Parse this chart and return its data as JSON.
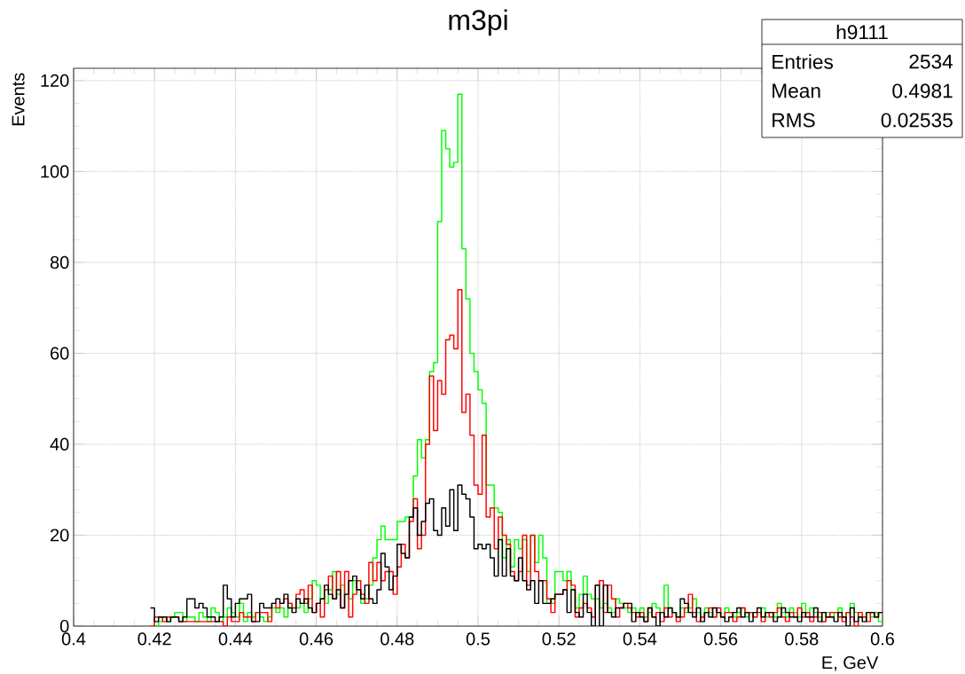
{
  "chart_data": {
    "type": "histogram",
    "title": "m3pi",
    "xlabel": "E, GeV",
    "ylabel": "Events",
    "annotations": [
      "h9111",
      "Entries",
      "2534",
      "Mean",
      "0.4981",
      "RMS",
      "0.02535"
    ],
    "xlim": [
      0.4,
      0.6
    ],
    "ylim": [
      0,
      122.7
    ],
    "xticks": [
      0.4,
      0.42,
      0.44,
      0.46,
      0.48,
      0.5,
      0.52,
      0.54,
      0.56,
      0.58,
      0.6
    ],
    "yticks": [
      0,
      20,
      40,
      60,
      80,
      100,
      120
    ],
    "grid": true,
    "bins": [
      0.419,
      0.42,
      0.421,
      0.422,
      0.423,
      0.424,
      0.425,
      0.426,
      0.427,
      0.428,
      0.429,
      0.43,
      0.431,
      0.432,
      0.433,
      0.434,
      0.435,
      0.436,
      0.437,
      0.438,
      0.439,
      0.44,
      0.441,
      0.442,
      0.443,
      0.444,
      0.445,
      0.446,
      0.447,
      0.448,
      0.449,
      0.45,
      0.451,
      0.452,
      0.453,
      0.454,
      0.455,
      0.456,
      0.457,
      0.458,
      0.459,
      0.46,
      0.461,
      0.462,
      0.463,
      0.464,
      0.465,
      0.466,
      0.467,
      0.468,
      0.469,
      0.47,
      0.471,
      0.472,
      0.473,
      0.474,
      0.475,
      0.476,
      0.477,
      0.478,
      0.479,
      0.48,
      0.481,
      0.482,
      0.483,
      0.484,
      0.485,
      0.486,
      0.487,
      0.488,
      0.489,
      0.49,
      0.491,
      0.492,
      0.493,
      0.494,
      0.495,
      0.496,
      0.497,
      0.498,
      0.499,
      0.5,
      0.501,
      0.502,
      0.503,
      0.504,
      0.505,
      0.506,
      0.507,
      0.508,
      0.509,
      0.51,
      0.511,
      0.512,
      0.513,
      0.514,
      0.515,
      0.516,
      0.517,
      0.518,
      0.519,
      0.52,
      0.521,
      0.522,
      0.523,
      0.524,
      0.525,
      0.526,
      0.527,
      0.528,
      0.529,
      0.53,
      0.531,
      0.532,
      0.533,
      0.534,
      0.535,
      0.536,
      0.537,
      0.538,
      0.539,
      0.54,
      0.541,
      0.542,
      0.543,
      0.544,
      0.545,
      0.546,
      0.547,
      0.548,
      0.549,
      0.55,
      0.551,
      0.552,
      0.553,
      0.554,
      0.555,
      0.556,
      0.557,
      0.558,
      0.559,
      0.56,
      0.561,
      0.562,
      0.563,
      0.564,
      0.565,
      0.566,
      0.567,
      0.568,
      0.569,
      0.57,
      0.571,
      0.572,
      0.573,
      0.574,
      0.575,
      0.576,
      0.577,
      0.578,
      0.579,
      0.58,
      0.581,
      0.582,
      0.583,
      0.584,
      0.585,
      0.586,
      0.587,
      0.588,
      0.589,
      0.59,
      0.591,
      0.592,
      0.593,
      0.594,
      0.595,
      0.596,
      0.597,
      0.598,
      0.599,
      0.6
    ],
    "series": [
      {
        "color": "#00ff00",
        "values": [
          0,
          0,
          1,
          2,
          1,
          2,
          3,
          3,
          1,
          2,
          2,
          1,
          3,
          2,
          1,
          4,
          3,
          1,
          2,
          4,
          3,
          2,
          5,
          1,
          3,
          2,
          3,
          2,
          1,
          2,
          4,
          3,
          4,
          2,
          5,
          4,
          4,
          5,
          3,
          6,
          10,
          9,
          6,
          5,
          8,
          12,
          7,
          9,
          7,
          6,
          10,
          8,
          5,
          6,
          9,
          15,
          19,
          22,
          19,
          19,
          19,
          23,
          23,
          24,
          24,
          33,
          41,
          37,
          41,
          56,
          58,
          89,
          109,
          105,
          101,
          102,
          117,
          83,
          72,
          60,
          56,
          52,
          49,
          31,
          31,
          26,
          25,
          15,
          19,
          13,
          19,
          17,
          19,
          12,
          20,
          14,
          20,
          15,
          5,
          5,
          12,
          12,
          10,
          12,
          8,
          4,
          7,
          11,
          7,
          6,
          6,
          4,
          5,
          4,
          3,
          6,
          5,
          4,
          3,
          4,
          3,
          4,
          2,
          3,
          5,
          4,
          3,
          9,
          4,
          3,
          2,
          4,
          3,
          4,
          6,
          3,
          2,
          4,
          3,
          2,
          3,
          2,
          4,
          3,
          2,
          3,
          4,
          2,
          3,
          2,
          3,
          4,
          2,
          3,
          2,
          5,
          3,
          2,
          4,
          3,
          2,
          5,
          3,
          4,
          3,
          2,
          1,
          3,
          2,
          3,
          4,
          2,
          3,
          5,
          3,
          2,
          2,
          3,
          2,
          3,
          1
        ]
      },
      {
        "color": "#ff0000",
        "values": [
          0,
          2,
          2,
          1,
          2,
          2,
          2,
          1,
          1,
          1,
          1,
          1,
          1,
          1,
          1,
          1,
          1,
          1,
          0,
          2,
          1,
          1,
          3,
          2,
          2,
          1,
          3,
          3,
          3,
          1,
          5,
          4,
          5,
          6,
          5,
          4,
          7,
          8,
          5,
          9,
          3,
          5,
          2,
          8,
          11,
          6,
          12,
          4,
          12,
          2,
          7,
          10,
          7,
          5,
          14,
          10,
          14,
          10,
          12,
          12,
          7,
          13,
          18,
          15,
          23,
          28,
          17,
          20,
          40,
          55,
          43,
          54,
          51,
          63,
          64,
          61,
          74,
          47,
          51,
          42,
          31,
          29,
          42,
          24,
          26,
          17,
          24,
          20,
          18,
          12,
          10,
          12,
          20,
          9,
          20,
          12,
          10,
          10,
          6,
          3,
          7,
          7,
          8,
          10,
          9,
          2,
          4,
          5,
          4,
          2,
          9,
          10,
          3,
          9,
          6,
          2,
          4,
          5,
          4,
          3,
          2,
          3,
          1,
          4,
          2,
          3,
          1,
          4,
          2,
          3,
          1,
          2,
          4,
          7,
          3,
          1,
          2,
          3,
          4,
          2,
          4,
          2,
          3,
          3,
          1,
          2,
          4,
          3,
          3,
          2,
          3,
          1,
          3,
          2,
          3,
          4,
          2,
          1,
          3,
          2,
          4,
          2,
          3,
          1,
          2,
          3,
          1,
          2,
          3,
          3,
          2,
          1,
          3,
          2,
          0,
          3,
          2,
          1,
          3,
          2,
          3
        ]
      },
      {
        "color": "#000000",
        "values": [
          4,
          1,
          2,
          2,
          1,
          2,
          2,
          1,
          2,
          6,
          6,
          4,
          5,
          4,
          2,
          2,
          1,
          2,
          9,
          6,
          2,
          5,
          6,
          6,
          7,
          1,
          1,
          5,
          4,
          4,
          5,
          6,
          5,
          7,
          4,
          3,
          6,
          5,
          6,
          4,
          3,
          5,
          6,
          9,
          7,
          6,
          8,
          4,
          7,
          10,
          11,
          8,
          6,
          9,
          6,
          5,
          8,
          16,
          13,
          8,
          11,
          18,
          16,
          15,
          24,
          26,
          20,
          23,
          27,
          28,
          21,
          20,
          26,
          22,
          30,
          21,
          31,
          29,
          28,
          24,
          17,
          18,
          17,
          18,
          15,
          11,
          19,
          11,
          17,
          11,
          10,
          15,
          10,
          8,
          10,
          5,
          10,
          5,
          5,
          6,
          7,
          7,
          8,
          3,
          8,
          3,
          2,
          7,
          3,
          0,
          9,
          0,
          9,
          3,
          2,
          4,
          4,
          5,
          5,
          1,
          3,
          2,
          1,
          4,
          2,
          0,
          3,
          2,
          4,
          3,
          2,
          6,
          5,
          3,
          2,
          4,
          1,
          3,
          2,
          4,
          3,
          2,
          1,
          2,
          3,
          4,
          2,
          3,
          1,
          3,
          4,
          2,
          3,
          3,
          1,
          2,
          4,
          3,
          2,
          2,
          1,
          3,
          2,
          2,
          4,
          1,
          3,
          2,
          2,
          1,
          3,
          2,
          0,
          4,
          1,
          2,
          1,
          3,
          3,
          2,
          3
        ]
      }
    ]
  }
}
